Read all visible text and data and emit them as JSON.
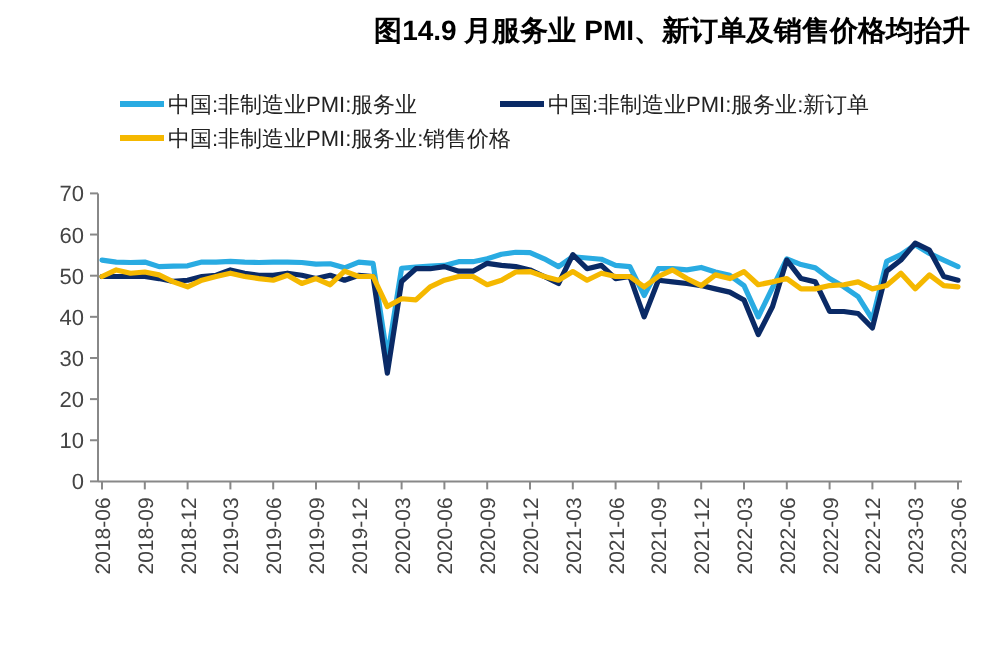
{
  "chart_data": {
    "type": "line",
    "title": "图14.9 月服务业 PMI、新订单及销售价格均抬升",
    "categories": [
      "2018-06",
      null,
      null,
      "2018-09",
      null,
      null,
      "2018-12",
      null,
      null,
      "2019-03",
      null,
      null,
      "2019-06",
      null,
      null,
      "2019-09",
      null,
      null,
      "2019-12",
      null,
      null,
      "2020-03",
      null,
      null,
      "2020-06",
      null,
      null,
      "2020-09",
      null,
      null,
      "2020-12",
      null,
      null,
      "2021-03",
      null,
      null,
      "2021-06",
      null,
      null,
      "2021-09",
      null,
      null,
      "2021-12",
      null,
      null,
      "2022-03",
      null,
      null,
      "2022-06",
      null,
      null,
      "2022-09",
      null,
      null,
      "2022-12",
      null,
      null,
      "2023-03",
      null,
      null,
      "2023-06"
    ],
    "series": [
      {
        "name": "中国:非制造业PMI:服务业",
        "color": "#29abe2",
        "values": [
          53.8,
          53.3,
          53.2,
          53.3,
          52.2,
          52.3,
          52.4,
          53.3,
          53.3,
          53.5,
          53.3,
          53.2,
          53.3,
          53.3,
          53.2,
          52.8,
          52.9,
          51.9,
          53.3,
          53.0,
          30.1,
          51.8,
          52.1,
          52.3,
          52.5,
          53.4,
          53.4,
          54.1,
          55.2,
          55.7,
          55.6,
          54.1,
          52.2,
          54.6,
          54.3,
          54.0,
          52.5,
          52.2,
          45.2,
          51.7,
          51.7,
          51.4,
          52.0,
          50.9,
          50.1,
          47.6,
          40.0,
          47.1,
          54.1,
          52.7,
          51.9,
          49.3,
          47.3,
          44.9,
          39.4,
          53.5,
          55.1,
          57.5,
          55.4,
          53.8,
          52.2
        ]
      },
      {
        "name": "中国:非制造业PMI:服务业:新订单",
        "color": "#0a2a66",
        "values": [
          49.8,
          49.8,
          49.8,
          49.8,
          49.3,
          48.6,
          48.9,
          49.8,
          50.1,
          51.4,
          50.6,
          50.1,
          50.1,
          50.6,
          50.1,
          49.3,
          50.1,
          48.9,
          50.1,
          49.8,
          26.3,
          48.6,
          51.7,
          51.7,
          52.2,
          51.1,
          51.1,
          53.0,
          52.5,
          52.2,
          51.4,
          49.8,
          48.1,
          55.1,
          51.7,
          52.5,
          49.3,
          49.8,
          40.0,
          48.9,
          48.5,
          48.1,
          47.6,
          46.8,
          46.0,
          44.1,
          35.7,
          42.5,
          53.8,
          49.3,
          48.5,
          41.3,
          41.3,
          40.8,
          37.3,
          51.1,
          53.8,
          57.9,
          56.2,
          49.8,
          48.9
        ]
      },
      {
        "name": "中国:非制造业PMI:服务业:销售价格",
        "color": "#f5b800",
        "values": [
          49.8,
          51.4,
          50.6,
          50.9,
          50.2,
          48.5,
          47.3,
          48.9,
          49.8,
          50.6,
          49.8,
          49.3,
          48.9,
          50.1,
          48.1,
          49.3,
          47.8,
          51.1,
          49.8,
          49.8,
          42.5,
          44.4,
          44.1,
          47.3,
          48.9,
          49.8,
          49.8,
          47.8,
          48.9,
          50.9,
          51.0,
          49.8,
          48.9,
          51.0,
          48.9,
          50.6,
          49.8,
          49.8,
          47.3,
          49.8,
          51.4,
          49.3,
          47.6,
          50.2,
          49.3,
          51.0,
          47.8,
          48.5,
          49.3,
          46.8,
          46.8,
          47.6,
          47.8,
          48.5,
          46.8,
          47.6,
          50.6,
          46.8,
          50.2,
          47.6,
          47.3
        ]
      }
    ],
    "ylim": [
      0,
      70
    ],
    "yticks": [
      0,
      10,
      20,
      30,
      40,
      50,
      60,
      70
    ],
    "grid": false,
    "legend": "top",
    "marker": "none",
    "line_style": "solid"
  }
}
